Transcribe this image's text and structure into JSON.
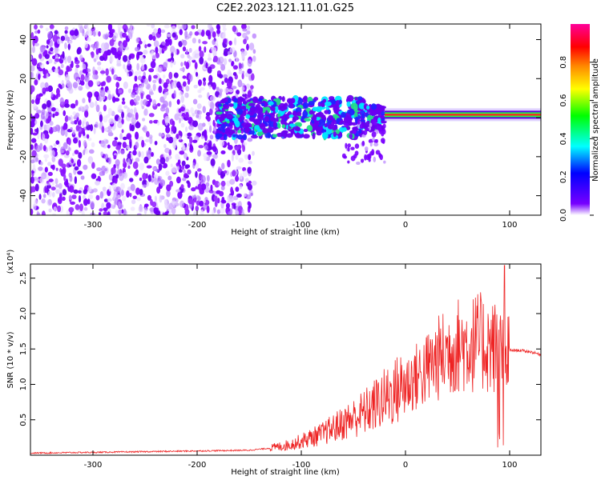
{
  "title": "C2E2.2023.121.11.01.G25",
  "chart_data": [
    {
      "type": "heatmap",
      "xlabel": "Height of straight line (km)",
      "ylabel": "Frequency (Hz)",
      "xlim": [
        -360,
        130
      ],
      "ylim": [
        -50,
        48
      ],
      "x_ticks": [
        -300,
        -200,
        -100,
        0,
        100
      ],
      "y_ticks": [
        -40,
        -20,
        0,
        20,
        40
      ],
      "grid": false,
      "colorbar": {
        "label": "Normalized spectral amplitude",
        "range": [
          0.0,
          1.0
        ],
        "ticks": [
          0.0,
          0.2,
          0.4,
          0.6,
          0.8
        ],
        "tick_labels": [
          "0.0",
          "0.2",
          "0.4",
          "0.6",
          "0.8"
        ],
        "colormap": "rainbow",
        "stops": [
          "#ffffff",
          "#6600ff",
          "#0000ff",
          "#00ffff",
          "#00ff00",
          "#ffff00",
          "#ff8800",
          "#ff0000",
          "#ff0099"
        ]
      },
      "regions": [
        {
          "name": "diffuse noise",
          "x": [
            -360,
            -145
          ],
          "y": [
            -50,
            48
          ],
          "amplitude": 0.1
        },
        {
          "name": "signal band",
          "x": [
            -180,
            -20
          ],
          "y": [
            -8,
            12
          ],
          "amplitude": 0.3
        },
        {
          "name": "carrier",
          "x": [
            -20,
            130
          ],
          "y": [
            0,
            3
          ],
          "amplitude": 0.95
        }
      ]
    },
    {
      "type": "line",
      "xlabel": "Height of straight line (km)",
      "ylabel": "SNR (10 * v/v)",
      "y_multiplier": "(x10⁴)",
      "xlim": [
        -360,
        130
      ],
      "ylim": [
        0,
        2.7
      ],
      "x_ticks": [
        -300,
        -200,
        -100,
        0,
        100
      ],
      "y_ticks": [
        0.5,
        1.0,
        1.5,
        2.0,
        2.5
      ],
      "y_tick_labels": [
        "0.5",
        "1.0",
        "1.5",
        "2.0",
        "2.5"
      ],
      "grid": false,
      "color": "#ee2222",
      "x": [
        -360,
        -300,
        -250,
        -200,
        -150,
        -130,
        -110,
        -100,
        -80,
        -60,
        -40,
        -20,
        -10,
        0,
        10,
        20,
        30,
        40,
        50,
        60,
        70,
        80,
        90,
        95,
        100,
        110,
        120,
        130
      ],
      "y": [
        0.03,
        0.04,
        0.05,
        0.06,
        0.07,
        0.1,
        0.15,
        0.2,
        0.3,
        0.45,
        0.6,
        0.8,
        0.9,
        1.0,
        1.1,
        1.2,
        1.35,
        1.45,
        1.55,
        1.55,
        1.6,
        1.55,
        1.5,
        1.3,
        1.48,
        1.48,
        1.46,
        1.42
      ]
    }
  ]
}
